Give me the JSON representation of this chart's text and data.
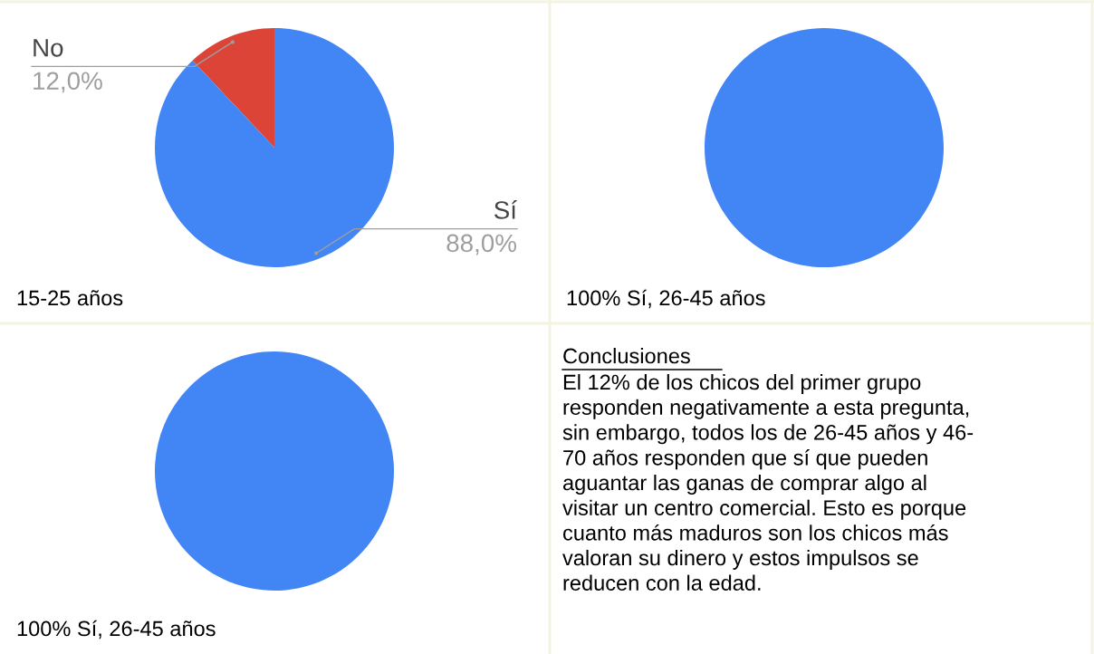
{
  "chart_data": [
    {
      "type": "pie",
      "categories": [
        "No",
        "Sí"
      ],
      "values": [
        12.0,
        88.0
      ],
      "colors": [
        "#db4437",
        "#4285f4"
      ],
      "value_labels": [
        "12,0%",
        "88,0%"
      ],
      "annotations": [
        "15-25 años"
      ]
    },
    {
      "type": "pie",
      "categories": [
        null
      ],
      "values": [
        100
      ],
      "colors": [
        "#4285f4"
      ],
      "annotations": [
        "100% Sí, 26-45 años"
      ]
    },
    {
      "type": "pie",
      "categories": [
        null
      ],
      "values": [
        100
      ],
      "colors": [
        "#4285f4"
      ],
      "annotations": [
        "100% Sí, 26-45 años"
      ]
    },
    {
      "type": "other",
      "title": "Conclusiones",
      "annotations": [
        "El 12% de los chicos del primer grupo\nresponden negativamente a esta pregunta,\nsin embargo, todos los de 26-45 años y 46-\n70 años responden que sí que pueden\naguantar las ganas de comprar algo al\nvisitar un centro comercial. Esto es porque\ncuanto más maduros son los chicos más\nvaloran su dinero y estos impulsos se\nreducen con la edad."
      ]
    }
  ]
}
